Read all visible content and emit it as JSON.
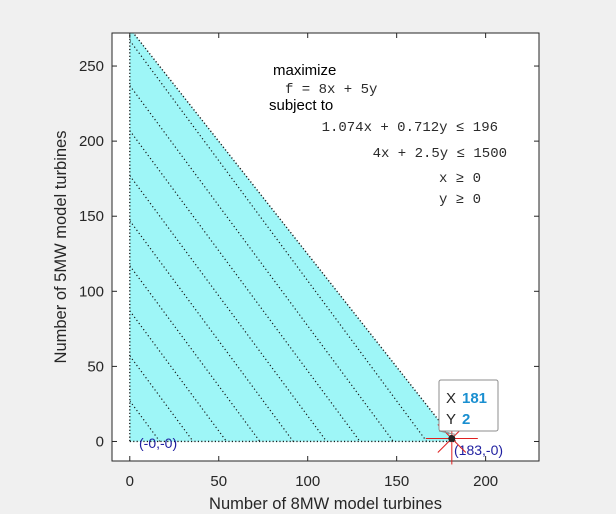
{
  "chart_data": {
    "type": "area",
    "xlabel": "Number of 8MW model turbines",
    "ylabel": "Number of 5MW model turbines",
    "xlim": [
      -10,
      230
    ],
    "ylim": [
      -13,
      272
    ],
    "xticks": [
      "0",
      "50",
      "100",
      "150",
      "200"
    ],
    "xtick_values": [
      0,
      50,
      100,
      150,
      200
    ],
    "yticks": [
      "0",
      "50",
      "100",
      "150",
      "200",
      "250"
    ],
    "ytick_values": [
      0,
      50,
      100,
      150,
      200,
      250
    ],
    "grid": false,
    "feasible_region": {
      "fill_color": "#9ef6f7",
      "vertices": [
        [
          0,
          0
        ],
        [
          183,
          0
        ],
        [
          0,
          275
        ]
      ]
    },
    "objective_contours": {
      "color": "#1a1a1a",
      "style": "dotted",
      "slope": -1.6,
      "intercepts": [
        27,
        57,
        87,
        117,
        147,
        177,
        207,
        237,
        267
      ]
    },
    "problem": {
      "objective_heading": "maximize",
      "objective": "f = 8x + 5y",
      "constraints_heading": "subject to",
      "constraints": [
        "1.074x + 0.712y ≤ 196",
        "4x +  2.5y ≤ 1500",
        "x ≥ 0",
        "y ≥ 0"
      ]
    },
    "vertex_labels": [
      {
        "text": "(-0,-0)",
        "x": 0,
        "y": 0
      },
      {
        "text": "(183,-0)",
        "x": 183,
        "y": 0
      }
    ],
    "datatip": {
      "x_key": "X",
      "x_value": "181",
      "y_key": "Y",
      "y_value": "2",
      "point": [
        181,
        2
      ]
    },
    "colors": {
      "plot_background": "#ffffff",
      "figure_background": "#f0f0f0",
      "axis": "#262626",
      "marker": "#e02020"
    }
  }
}
